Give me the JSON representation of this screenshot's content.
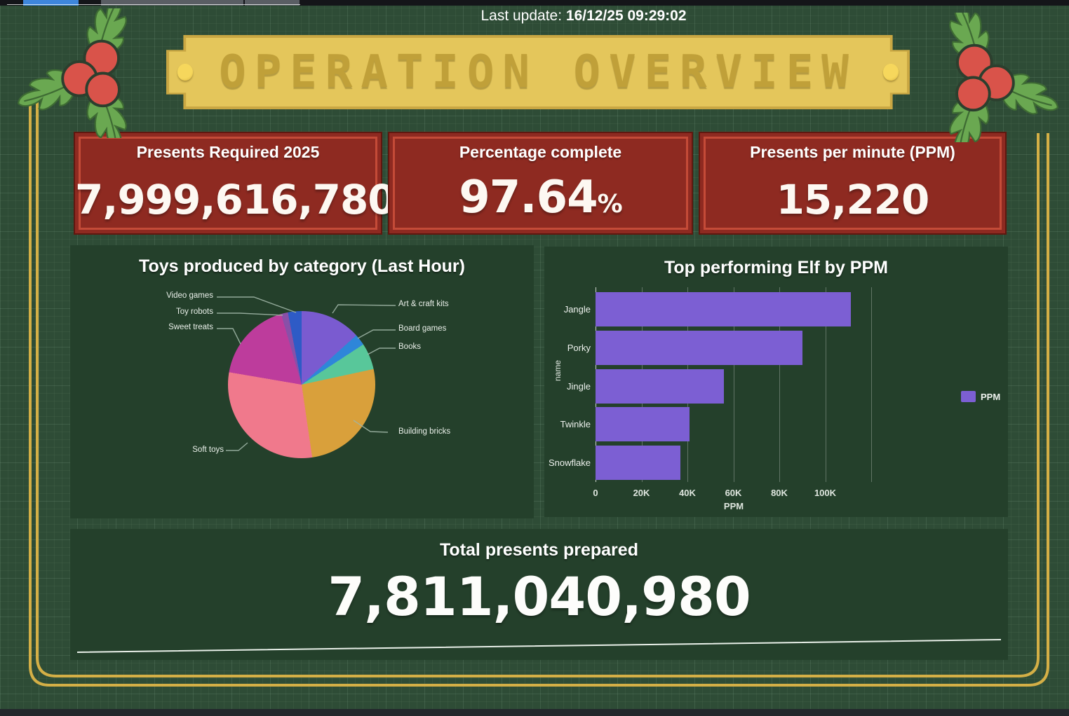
{
  "page": {
    "last_update_label": "Last update:",
    "last_update_value": "16/12/25 09:29:02"
  },
  "banner": {
    "title": "OPERATION OVERVIEW"
  },
  "kpis": [
    {
      "label": "Presents Required 2025",
      "value": "7,999,616,780"
    },
    {
      "label": "Percentage complete",
      "value": "97.64",
      "suffix": "%"
    },
    {
      "label": "Presents per minute (PPM)",
      "value": "15,220"
    }
  ],
  "total": {
    "label": "Total presents prepared",
    "value": "7,811,040,980"
  },
  "chart_data": [
    {
      "type": "pie",
      "title": "Toys produced by category (Last Hour)",
      "slices": [
        {
          "label": "Art & craft kits",
          "percent": 13.3,
          "color": "#7a5bd0"
        },
        {
          "label": "Board games",
          "percent": 2.5,
          "color": "#2e86d9"
        },
        {
          "label": "Books",
          "percent": 5.8,
          "color": "#58c79a"
        },
        {
          "label": "Building bricks",
          "percent": 26.1,
          "color": "#d9a03b"
        },
        {
          "label": "Soft toys",
          "percent": 30.0,
          "color": "#f0798c"
        },
        {
          "label": "Sweet treats",
          "percent": 17.8,
          "color": "#bd3c9c"
        },
        {
          "label": "Toy robots",
          "percent": 1.5,
          "color": "#8950a8"
        },
        {
          "label": "Video games",
          "percent": 3.0,
          "color": "#2e5bc6"
        }
      ]
    },
    {
      "type": "bar",
      "orientation": "horizontal",
      "title": "Top performing Elf by PPM",
      "categories": [
        "Jangle",
        "Porky",
        "Jingle",
        "Twinkle",
        "Snowflake"
      ],
      "values": [
        111000,
        90000,
        56000,
        41000,
        37000
      ],
      "xlabel": "PPM",
      "ylabel": "name",
      "xlim": [
        0,
        120000
      ],
      "xticks": [
        "0",
        "20K",
        "40K",
        "60K",
        "80K",
        "100K"
      ],
      "legend_label": "PPM",
      "bar_color": "#7c5fd3",
      "grid": true,
      "legend_position": "right"
    }
  ],
  "colors": {
    "page_bg": "#2e4c36",
    "panel_bg": "#24402b",
    "card_bg": "#8e2a21",
    "card_border": "#c44b38",
    "banner_gold": "#e4c65b",
    "banner_text": "#c0a039",
    "frame_gold": "#d4af46",
    "bar_purple": "#7c5fd3",
    "holly_leaf": "#67a351",
    "holly_berry": "#d9534a"
  }
}
